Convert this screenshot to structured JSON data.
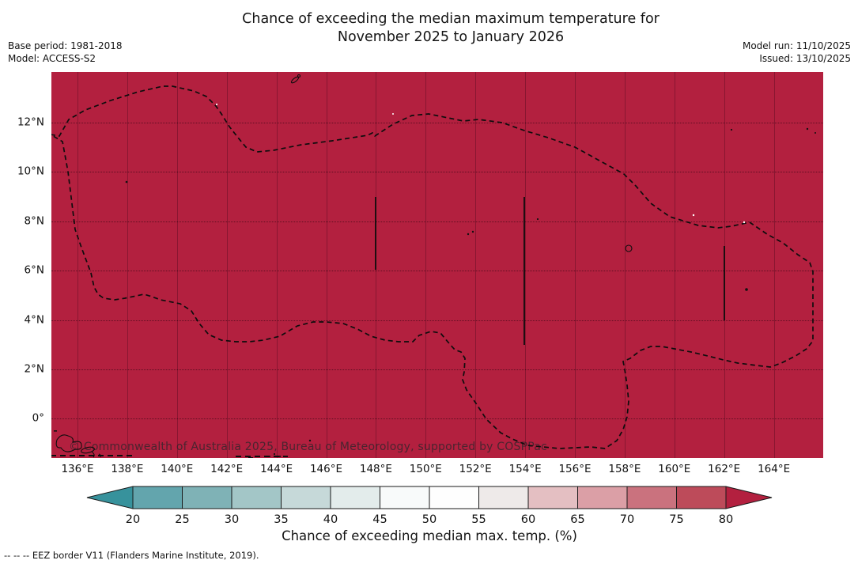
{
  "title": {
    "line1": "Chance of exceeding the median maximum temperature for",
    "line2": "November 2025 to January 2026"
  },
  "meta": {
    "base_period": "Base period: 1981-2018",
    "model": "Model: ACCESS-S2",
    "model_run": "Model run: 11/10/2025",
    "issued": "Issued: 13/10/2025"
  },
  "map": {
    "bg_color": "#b3203f",
    "watermark": "© Commonwealth of Australia 2025, Bureau of Meteorology, supported by COSPPac",
    "y_tick_labels": [
      "12°N",
      "10°N",
      "8°N",
      "6°N",
      "4°N",
      "2°N",
      "0°"
    ],
    "x_tick_labels": [
      "136°E",
      "138°E",
      "140°E",
      "142°E",
      "144°E",
      "146°E",
      "148°E",
      "150°E",
      "152°E",
      "154°E",
      "156°E",
      "158°E",
      "160°E",
      "162°E",
      "164°E"
    ]
  },
  "colorbar": {
    "label": "Chance of exceeding median max. temp. (%)",
    "tick_labels": [
      "20",
      "25",
      "30",
      "35",
      "40",
      "45",
      "50",
      "55",
      "60",
      "65",
      "70",
      "75",
      "80"
    ],
    "under_color": "#37929c",
    "over_color": "#b3203f",
    "segment_colors": [
      "#63a5ad",
      "#7fb2b6",
      "#a3c6c7",
      "#c6d9d9",
      "#e3eceb",
      "#f8fafa",
      "#fefefe",
      "#eeeae9",
      "#e4bfc2",
      "#db9fa6",
      "#ca727e",
      "#bd4b5a"
    ]
  },
  "footer": {
    "eez_note": "--  --  -- EEZ border V11 (Flanders Marine Institute, 2019)."
  },
  "chart_data": {
    "type": "heatmap",
    "title": "Chance of exceeding the median maximum temperature for November 2025 to January 2026",
    "base_period": "1981-2018",
    "model": "ACCESS-S2",
    "model_run": "11/10/2025",
    "issued": "13/10/2025",
    "x_ticks_deg_east": [
      136,
      138,
      140,
      142,
      144,
      146,
      148,
      150,
      152,
      154,
      156,
      158,
      160,
      162,
      164
    ],
    "y_ticks_deg_north": [
      12,
      10,
      8,
      6,
      4,
      2,
      0
    ],
    "xlim_deg_east": [
      135.0,
      166.0
    ],
    "ylim_deg_north": [
      -1.6,
      14.1
    ],
    "value_label": "Chance of exceeding median max. temp. (%)",
    "colorbar_ticks": [
      20,
      25,
      30,
      35,
      40,
      45,
      50,
      55,
      60,
      65,
      70,
      75,
      80
    ],
    "colorbar_extends": "both",
    "field_summary": "Uniform value above 80% (dark red, over-range color) across the entire mapped Micronesia region",
    "overlay": "Dashed EEZ border V11 (Flanders Marine Institute, 2019) enclosing the FSM EEZ; small island outlines; vertical EEZ segment lines near 148°E (6–9°N), 154°E (3–9°N) and 162°E (4–7°N)",
    "grid": true,
    "legend_position": "horizontal colorbar below map"
  }
}
